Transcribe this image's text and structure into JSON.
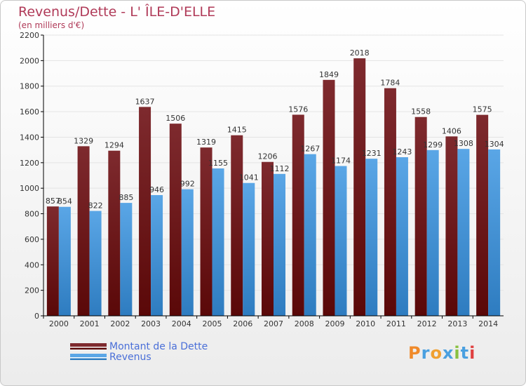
{
  "title": "Revenus/Dette - L' ÎLE-D'ELLE",
  "subtitle": "(en milliers d'€)",
  "legend": {
    "debt_label": "Montant de la Dette",
    "revenue_label": "Revenus"
  },
  "logo": {
    "text": "Proxiti",
    "letters": [
      "P",
      "r",
      "o",
      "x",
      "i",
      "t",
      "i"
    ],
    "colors": [
      "#f08a2a",
      "#4aa0e0",
      "#f0a030",
      "#4aa0e0",
      "#88c040",
      "#4aa0e0",
      "#e04040"
    ]
  },
  "colors": {
    "debt": "#7e2a2e",
    "debt_dark": "#5a0808",
    "revenue": "#5aa6e6",
    "revenue_dark": "#2e7cc0",
    "grid": "#e4e4e4",
    "axis": "#000000",
    "text": "#333333"
  },
  "chart_data": {
    "type": "bar",
    "categories": [
      "2000",
      "2001",
      "2002",
      "2003",
      "2004",
      "2005",
      "2006",
      "2007",
      "2008",
      "2009",
      "2010",
      "2011",
      "2012",
      "2013",
      "2014"
    ],
    "series": [
      {
        "name": "Montant de la Dette",
        "values": [
          857,
          1329,
          1294,
          1637,
          1506,
          1319,
          1415,
          1206,
          1576,
          1849,
          2018,
          1784,
          1558,
          1406,
          1575
        ]
      },
      {
        "name": "Revenus",
        "values": [
          854,
          822,
          885,
          946,
          992,
          1155,
          1041,
          1112,
          1267,
          1174,
          1231,
          1243,
          1299,
          1308,
          1304
        ]
      }
    ],
    "ylim": [
      0,
      2200
    ],
    "yticks": [
      0,
      200,
      400,
      600,
      800,
      1000,
      1200,
      1400,
      1600,
      1800,
      2000,
      2200
    ],
    "grid": true,
    "legend_position": "bottom-left"
  }
}
